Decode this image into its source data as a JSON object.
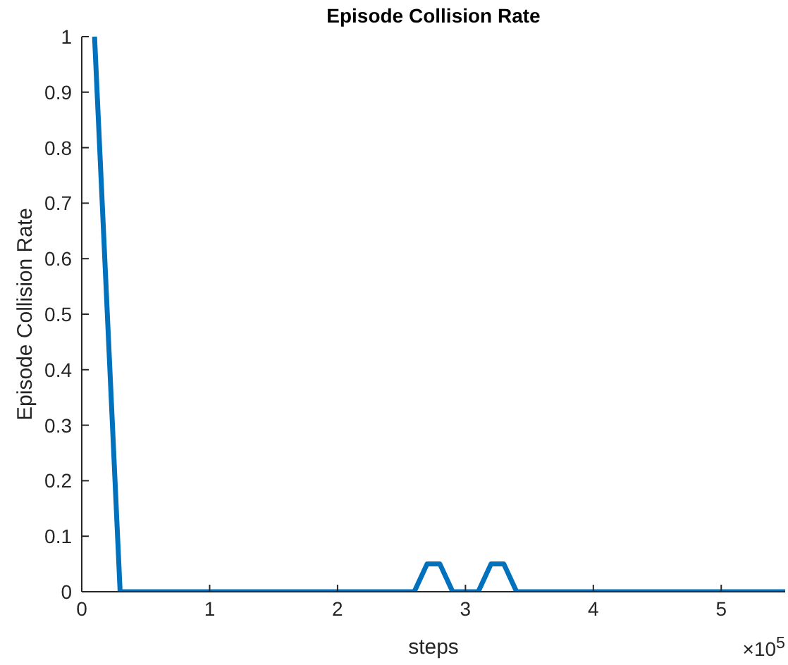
{
  "chart_data": {
    "type": "line",
    "title": "Episode Collision Rate",
    "xlabel": "steps",
    "ylabel": "Episode Collision Rate",
    "annotations": [
      "×10$^{5}$"
    ],
    "x": [
      0.1,
      0.3,
      2.6,
      2.7,
      2.8,
      2.9,
      3.1,
      3.2,
      3.3,
      3.4,
      5.5
    ],
    "series": [
      {
        "color": "#0072bd",
        "values": [
          1,
          0,
          0,
          0.05,
          0.05,
          0,
          0,
          0.05,
          0.05,
          0,
          0
        ]
      }
    ],
    "xlim": [
      0,
      5.5
    ],
    "xticks": [
      0,
      1,
      2,
      3,
      4,
      5
    ],
    "ylim": [
      0,
      1
    ],
    "yticks": [
      0,
      0.1,
      0.2,
      0.3,
      0.4,
      0.5,
      0.6,
      0.7,
      0.8,
      0.9,
      1
    ],
    "grid": false,
    "legend": false,
    "marker": "none",
    "line_style": "solid"
  }
}
